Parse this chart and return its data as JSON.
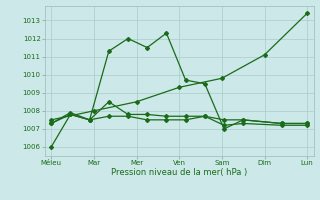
{
  "xlabel": "Pression niveau de la mer( hPa )",
  "x_labels": [
    "Méleu",
    "Mar",
    "Mer",
    "Ven",
    "Sam",
    "Dim",
    "Lun"
  ],
  "x_positions": [
    0,
    1,
    2,
    3,
    4,
    5,
    6
  ],
  "ylim": [
    1005.5,
    1013.8
  ],
  "yticks": [
    1006,
    1007,
    1008,
    1009,
    1010,
    1011,
    1012,
    1013
  ],
  "bg_color": "#cce8e8",
  "grid_color": "#aacccc",
  "line_color": "#1a6b1a",
  "line1_x": [
    0,
    0.45,
    0.9,
    1.35,
    1.8,
    2.25,
    2.7,
    3.15,
    3.6,
    4.05,
    4.5,
    5.4,
    6.0
  ],
  "line1_y": [
    1006.0,
    1007.8,
    1007.5,
    1011.3,
    1012.0,
    1011.5,
    1012.3,
    1009.7,
    1009.5,
    1007.0,
    1007.5,
    1007.3,
    1007.3
  ],
  "line2_x": [
    0,
    0.45,
    0.9,
    1.35,
    1.8,
    2.25,
    2.7,
    3.15,
    3.6,
    4.05,
    4.5,
    5.4,
    6.0
  ],
  "line2_y": [
    1007.3,
    1007.9,
    1007.5,
    1008.5,
    1007.8,
    1007.8,
    1007.7,
    1007.7,
    1007.7,
    1007.5,
    1007.5,
    1007.3,
    1007.3
  ],
  "line3_x": [
    0,
    1,
    2,
    3,
    4,
    5,
    6
  ],
  "line3_y": [
    1007.5,
    1008.0,
    1008.5,
    1009.3,
    1009.8,
    1011.1,
    1013.4
  ],
  "line4_x": [
    0,
    0.45,
    0.9,
    1.35,
    1.8,
    2.25,
    2.7,
    3.15,
    3.6,
    4.05,
    4.5,
    5.4,
    6.0
  ],
  "line4_y": [
    1007.3,
    1007.8,
    1007.5,
    1007.7,
    1007.7,
    1007.5,
    1007.5,
    1007.5,
    1007.7,
    1007.2,
    1007.3,
    1007.2,
    1007.2
  ]
}
